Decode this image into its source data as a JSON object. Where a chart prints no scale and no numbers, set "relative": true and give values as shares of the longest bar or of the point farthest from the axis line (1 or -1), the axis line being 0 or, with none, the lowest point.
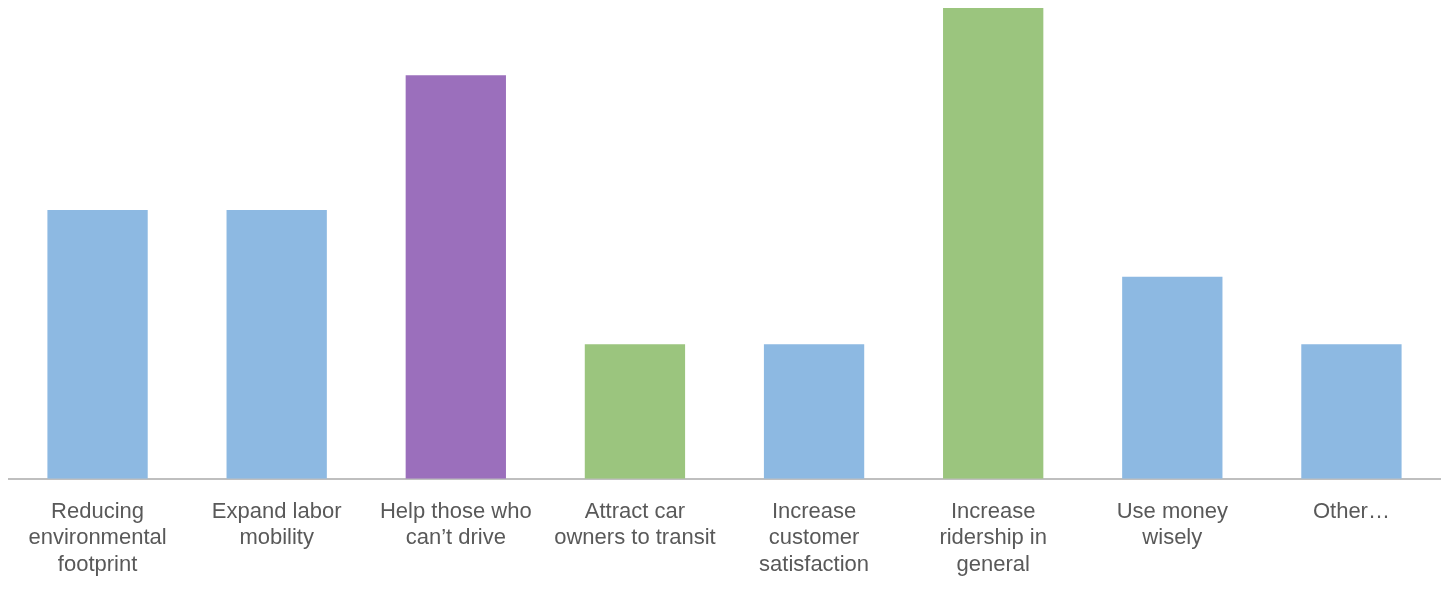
{
  "chart_data": {
    "type": "bar",
    "relative": true,
    "grid": false,
    "legend": false,
    "categories": [
      "Reducing environmental footprint",
      "Expand labor mobility",
      "Help those who can’t drive",
      "Attract car owners to transit",
      "Increase customer satisfaction",
      "Increase ridership in general",
      "Use money wisely",
      "Other…"
    ],
    "values": [
      0.571,
      0.571,
      0.857,
      0.286,
      0.286,
      1,
      0.429,
      0.286
    ],
    "colors": [
      "#8db9e2",
      "#8db9e2",
      "#9b6fbc",
      "#9bc57e",
      "#8db9e2",
      "#9bc57e",
      "#8db9e2",
      "#8db9e2"
    ]
  }
}
